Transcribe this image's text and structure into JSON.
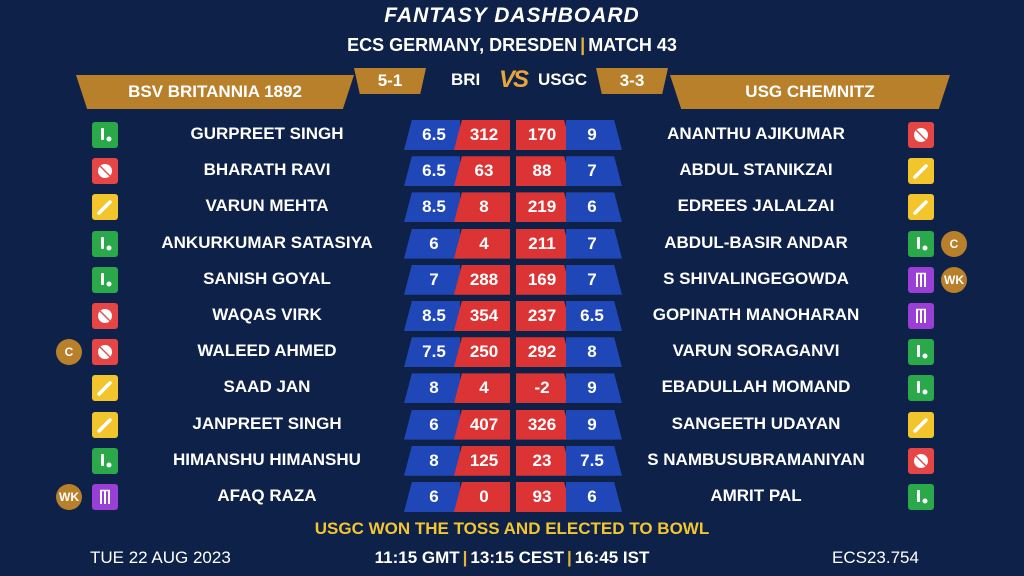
{
  "header": {
    "title": "FANTASY DASHBOARD",
    "venue": "ECS GERMANY, DRESDEN",
    "match": "MATCH 43"
  },
  "teams": {
    "left": {
      "name": "BSV BRITANNIA 1892",
      "abbr": "BRI",
      "score": "5-1"
    },
    "vs": "VS",
    "right": {
      "name": "USG CHEMNITZ",
      "abbr": "USGC",
      "score": "3-3"
    }
  },
  "players": [
    {
      "left": {
        "name": "GURPREET SINGH",
        "role": "allrounder",
        "badge": "",
        "credit": "6.5",
        "points": "312"
      },
      "right": {
        "name": "ANANTHU AJIKUMAR",
        "role": "bowler",
        "badge": "",
        "credit": "9",
        "points": "170"
      }
    },
    {
      "left": {
        "name": "BHARATH RAVI",
        "role": "bowler",
        "badge": "",
        "credit": "6.5",
        "points": "63"
      },
      "right": {
        "name": "ABDUL STANIKZAI",
        "role": "batter",
        "badge": "",
        "credit": "7",
        "points": "88"
      }
    },
    {
      "left": {
        "name": "VARUN MEHTA",
        "role": "batter",
        "badge": "",
        "credit": "8.5",
        "points": "8"
      },
      "right": {
        "name": "EDREES JALALZAI",
        "role": "batter",
        "badge": "",
        "credit": "6",
        "points": "219"
      }
    },
    {
      "left": {
        "name": "ANKURKUMAR SATASIYA",
        "role": "allrounder",
        "badge": "",
        "credit": "6",
        "points": "4"
      },
      "right": {
        "name": "ABDUL-BASIR ANDAR",
        "role": "allrounder",
        "badge": "C",
        "credit": "7",
        "points": "211"
      }
    },
    {
      "left": {
        "name": "SANISH GOYAL",
        "role": "allrounder",
        "badge": "",
        "credit": "7",
        "points": "288"
      },
      "right": {
        "name": "S SHIVALINGEGOWDA",
        "role": "wicketkeeper",
        "badge": "WK",
        "credit": "7",
        "points": "169"
      }
    },
    {
      "left": {
        "name": "WAQAS VIRK",
        "role": "bowler",
        "badge": "",
        "credit": "8.5",
        "points": "354"
      },
      "right": {
        "name": "GOPINATH MANOHARAN",
        "role": "wicketkeeper",
        "badge": "",
        "credit": "6.5",
        "points": "237"
      }
    },
    {
      "left": {
        "name": "WALEED AHMED",
        "role": "bowler",
        "badge": "C",
        "credit": "7.5",
        "points": "250"
      },
      "right": {
        "name": "VARUN SORAGANVI",
        "role": "allrounder",
        "badge": "",
        "credit": "8",
        "points": "292"
      }
    },
    {
      "left": {
        "name": "SAAD JAN",
        "role": "batter",
        "badge": "",
        "credit": "8",
        "points": "4"
      },
      "right": {
        "name": "EBADULLAH MOMAND",
        "role": "allrounder",
        "badge": "",
        "credit": "9",
        "points": "-2"
      }
    },
    {
      "left": {
        "name": "JANPREET SINGH",
        "role": "batter",
        "badge": "",
        "credit": "6",
        "points": "407"
      },
      "right": {
        "name": "SANGEETH UDAYAN",
        "role": "batter",
        "badge": "",
        "credit": "9",
        "points": "326"
      }
    },
    {
      "left": {
        "name": "HIMANSHU HIMANSHU",
        "role": "allrounder",
        "badge": "",
        "credit": "8",
        "points": "125"
      },
      "right": {
        "name": "S NAMBUSUBRAMANIYAN",
        "role": "bowler",
        "badge": "",
        "credit": "7.5",
        "points": "23"
      }
    },
    {
      "left": {
        "name": "AFAQ RAZA",
        "role": "wicketkeeper",
        "badge": "WK",
        "credit": "6",
        "points": "0"
      },
      "right": {
        "name": "AMRIT PAL",
        "role": "allrounder",
        "badge": "",
        "credit": "6",
        "points": "93"
      }
    }
  ],
  "toss": "USGC WON THE TOSS AND ELECTED TO BOWL",
  "footer": {
    "date": "TUE 22 AUG 2023",
    "time_gmt": "11:15 GMT",
    "time_cest": "13:15 CEST",
    "time_ist": "16:45 IST",
    "code": "ECS23.754"
  },
  "role_icons": {
    "batter": "cricket-bat-icon",
    "bowler": "cricket-ball-icon",
    "allrounder": "bat-and-ball-icon",
    "wicketkeeper": "stumps-icon"
  },
  "colors": {
    "background": "#0e2148",
    "gold": "#b8802a",
    "credit_blue": "#1f47b8",
    "points_red": "#dc3434",
    "toss_yellow": "#f2c531",
    "batter": "#f3c52d",
    "bowler": "#e64545",
    "allrounder": "#2ba84a",
    "wicketkeeper": "#9a3fd6"
  }
}
